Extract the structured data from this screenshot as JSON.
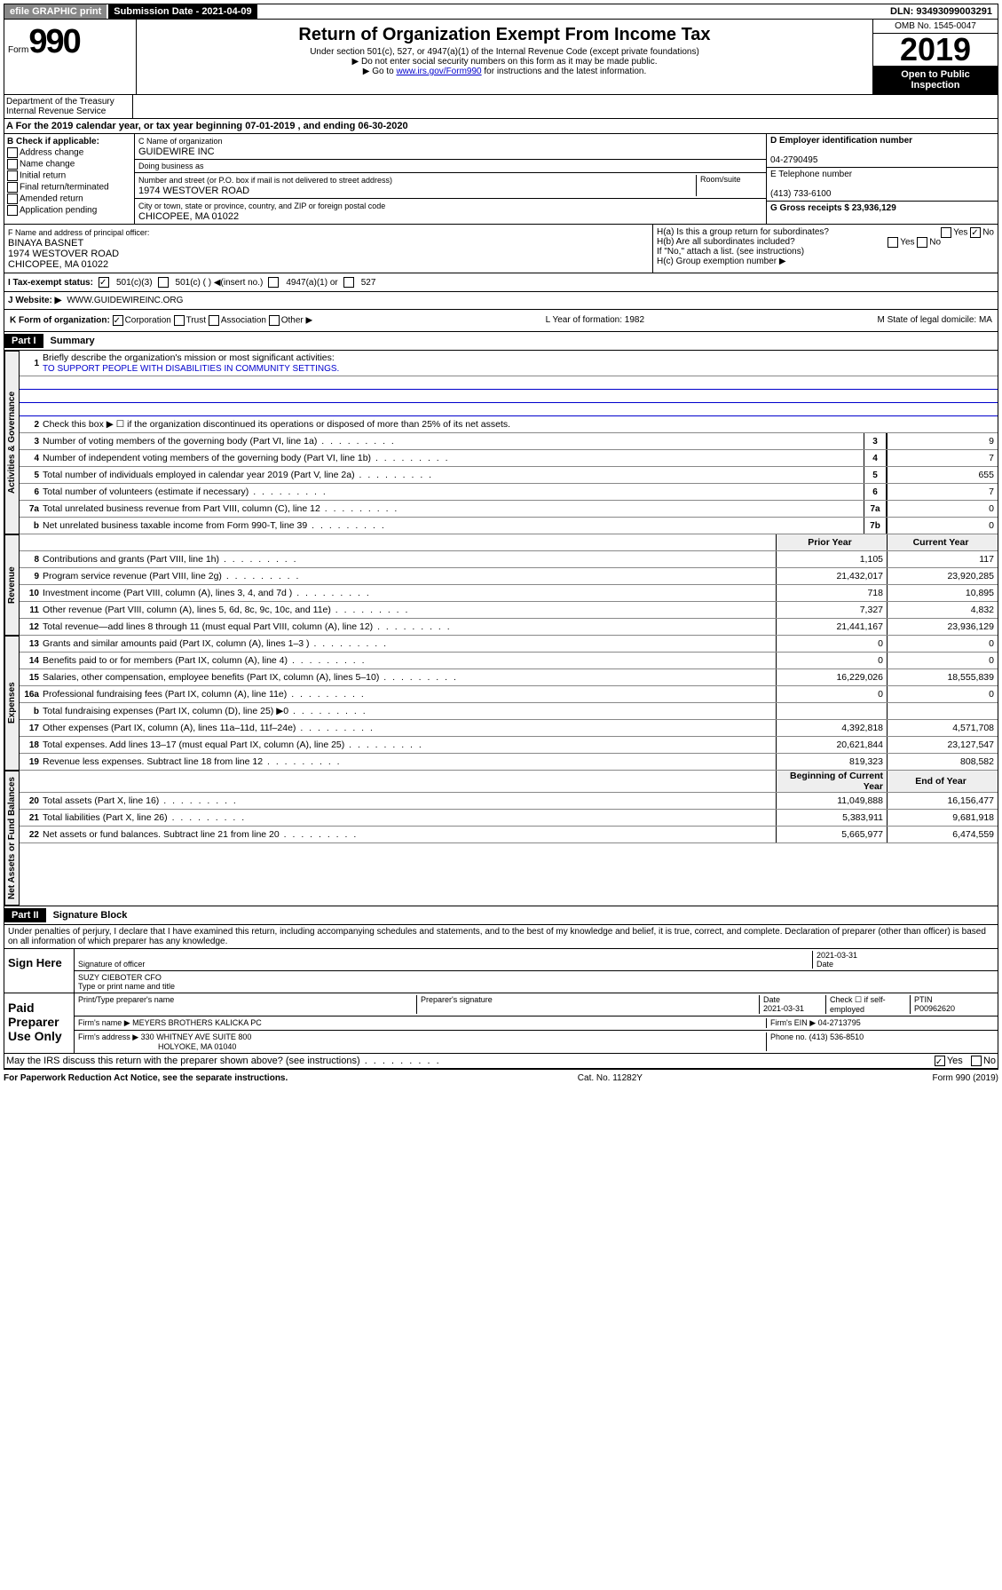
{
  "topbar": {
    "efile": "efile GRAPHIC print",
    "subdate_label": "Submission Date - 2021-04-09",
    "dln": "DLN: 93493099003291"
  },
  "header": {
    "form_prefix": "Form",
    "form_no": "990",
    "title": "Return of Organization Exempt From Income Tax",
    "sub1": "Under section 501(c), 527, or 4947(a)(1) of the Internal Revenue Code (except private foundations)",
    "sub2": "▶ Do not enter social security numbers on this form as it may be made public.",
    "sub3_pre": "▶ Go to ",
    "sub3_link": "www.irs.gov/Form990",
    "sub3_post": " for instructions and the latest information.",
    "omb": "OMB No. 1545-0047",
    "year": "2019",
    "open": "Open to Public Inspection",
    "dept": "Department of the Treasury\nInternal Revenue Service"
  },
  "a": {
    "text": "A   For the 2019 calendar year, or tax year beginning 07-01-2019    , and ending 06-30-2020"
  },
  "b": {
    "label": "B Check if applicable:",
    "opts": [
      "Address change",
      "Name change",
      "Initial return",
      "Final return/terminated",
      "Amended return",
      "Application pending"
    ]
  },
  "c": {
    "name_label": "C Name of organization",
    "name": "GUIDEWIRE INC",
    "dba_label": "Doing business as",
    "addr_label": "Number and street (or P.O. box if mail is not delivered to street address)",
    "room": "Room/suite",
    "addr": "1974 WESTOVER ROAD",
    "city_label": "City or town, state or province, country, and ZIP or foreign postal code",
    "city": "CHICOPEE, MA  01022"
  },
  "d": {
    "ein_label": "D Employer identification number",
    "ein": "04-2790495",
    "tel_label": "E Telephone number",
    "tel": "(413) 733-6100",
    "gross_label": "G Gross receipts $ 23,936,129"
  },
  "f": {
    "label": "F  Name and address of principal officer:",
    "name": "BINAYA BASNET",
    "addr": "1974 WESTOVER ROAD",
    "city": "CHICOPEE, MA  01022"
  },
  "h": {
    "a": "H(a)  Is this a group return for subordinates?",
    "b": "H(b)  Are all subordinates included?",
    "note": "If \"No,\" attach a list. (see instructions)",
    "c": "H(c)  Group exemption number ▶",
    "yes": "Yes",
    "no": "No"
  },
  "i": {
    "label": "I    Tax-exempt status:",
    "opts": [
      "501(c)(3)",
      "501(c) (  ) ◀(insert no.)",
      "4947(a)(1) or",
      "527"
    ]
  },
  "j": {
    "label": "J    Website: ▶",
    "val": "WWW.GUIDEWIREINC.ORG"
  },
  "k": {
    "label": "K Form of organization:",
    "opts": [
      "Corporation",
      "Trust",
      "Association",
      "Other ▶"
    ],
    "l": "L Year of formation: 1982",
    "m": "M State of legal domicile: MA"
  },
  "part1": {
    "hdr": "Part I",
    "title": "Summary"
  },
  "summary": {
    "l1": "Briefly describe the organization's mission or most significant activities:",
    "mission": "TO SUPPORT PEOPLE WITH DISABILITIES IN COMMUNITY SETTINGS.",
    "l2": "Check this box ▶ ☐  if the organization discontinued its operations or disposed of more than 25% of its net assets.",
    "prior": "Prior Year",
    "current": "Current Year",
    "beg": "Beginning of Current Year",
    "end": "End of Year"
  },
  "sections": [
    {
      "tab": "Activities & Governance",
      "rows": [
        {
          "n": "3",
          "d": "Number of voting members of the governing body (Part VI, line 1a)",
          "box": "3",
          "v2": "9"
        },
        {
          "n": "4",
          "d": "Number of independent voting members of the governing body (Part VI, line 1b)",
          "box": "4",
          "v2": "7"
        },
        {
          "n": "5",
          "d": "Total number of individuals employed in calendar year 2019 (Part V, line 2a)",
          "box": "5",
          "v2": "655"
        },
        {
          "n": "6",
          "d": "Total number of volunteers (estimate if necessary)",
          "box": "6",
          "v2": "7"
        },
        {
          "n": "7a",
          "d": "Total unrelated business revenue from Part VIII, column (C), line 12",
          "box": "7a",
          "v2": "0"
        },
        {
          "n": "b",
          "d": "Net unrelated business taxable income from Form 990-T, line 39",
          "box": "7b",
          "v2": "0"
        }
      ]
    },
    {
      "tab": "Revenue",
      "hdr": true,
      "rows": [
        {
          "n": "8",
          "d": "Contributions and grants (Part VIII, line 1h)",
          "v1": "1,105",
          "v2": "117"
        },
        {
          "n": "9",
          "d": "Program service revenue (Part VIII, line 2g)",
          "v1": "21,432,017",
          "v2": "23,920,285"
        },
        {
          "n": "10",
          "d": "Investment income (Part VIII, column (A), lines 3, 4, and 7d )",
          "v1": "718",
          "v2": "10,895"
        },
        {
          "n": "11",
          "d": "Other revenue (Part VIII, column (A), lines 5, 6d, 8c, 9c, 10c, and 11e)",
          "v1": "7,327",
          "v2": "4,832"
        },
        {
          "n": "12",
          "d": "Total revenue—add lines 8 through 11 (must equal Part VIII, column (A), line 12)",
          "v1": "21,441,167",
          "v2": "23,936,129"
        }
      ]
    },
    {
      "tab": "Expenses",
      "rows": [
        {
          "n": "13",
          "d": "Grants and similar amounts paid (Part IX, column (A), lines 1–3 )",
          "v1": "0",
          "v2": "0"
        },
        {
          "n": "14",
          "d": "Benefits paid to or for members (Part IX, column (A), line 4)",
          "v1": "0",
          "v2": "0"
        },
        {
          "n": "15",
          "d": "Salaries, other compensation, employee benefits (Part IX, column (A), lines 5–10)",
          "v1": "16,229,026",
          "v2": "18,555,839"
        },
        {
          "n": "16a",
          "d": "Professional fundraising fees (Part IX, column (A), line 11e)",
          "v1": "0",
          "v2": "0"
        },
        {
          "n": "b",
          "d": "Total fundraising expenses (Part IX, column (D), line 25) ▶0",
          "v1": "",
          "v2": ""
        },
        {
          "n": "17",
          "d": "Other expenses (Part IX, column (A), lines 11a–11d, 11f–24e)",
          "v1": "4,392,818",
          "v2": "4,571,708"
        },
        {
          "n": "18",
          "d": "Total expenses. Add lines 13–17 (must equal Part IX, column (A), line 25)",
          "v1": "20,621,844",
          "v2": "23,127,547"
        },
        {
          "n": "19",
          "d": "Revenue less expenses. Subtract line 18 from line 12",
          "v1": "819,323",
          "v2": "808,582"
        }
      ]
    },
    {
      "tab": "Net Assets or Fund Balances",
      "hdr2": true,
      "rows": [
        {
          "n": "20",
          "d": "Total assets (Part X, line 16)",
          "v1": "11,049,888",
          "v2": "16,156,477"
        },
        {
          "n": "21",
          "d": "Total liabilities (Part X, line 26)",
          "v1": "5,383,911",
          "v2": "9,681,918"
        },
        {
          "n": "22",
          "d": "Net assets or fund balances. Subtract line 21 from line 20",
          "v1": "5,665,977",
          "v2": "6,474,559"
        }
      ]
    }
  ],
  "part2": {
    "hdr": "Part II",
    "title": "Signature Block",
    "perjury": "Under penalties of perjury, I declare that I have examined this return, including accompanying schedules and statements, and to the best of my knowledge and belief, it is true, correct, and complete. Declaration of preparer (other than officer) is based on all information of which preparer has any knowledge."
  },
  "sign": {
    "here": "Sign Here",
    "sig_label": "Signature of officer",
    "date": "2021-03-31",
    "date_label": "Date",
    "name": "SUZY CIEBOTER  CFO",
    "name_label": "Type or print name and title"
  },
  "paid": {
    "label": "Paid Preparer Use Only",
    "cols": [
      "Print/Type preparer's name",
      "Preparer's signature",
      "Date",
      "Check ☐ if self-employed",
      "PTIN"
    ],
    "date": "2021-03-31",
    "ptin": "P00962620",
    "firm_label": "Firm's name    ▶",
    "firm": "MEYERS BROTHERS KALICKA PC",
    "ein_label": "Firm's EIN ▶",
    "ein": "04-2713795",
    "addr_label": "Firm's address ▶",
    "addr": "330 WHITNEY AVE SUITE 800",
    "city": "HOLYOKE, MA  01040",
    "phone_label": "Phone no.",
    "phone": "(413) 536-8510"
  },
  "discuss": {
    "q": "May the IRS discuss this return with the preparer shown above? (see instructions)",
    "yes": "Yes",
    "no": "No"
  },
  "footer": {
    "left": "For Paperwork Reduction Act Notice, see the separate instructions.",
    "mid": "Cat. No. 11282Y",
    "right": "Form 990 (2019)"
  }
}
